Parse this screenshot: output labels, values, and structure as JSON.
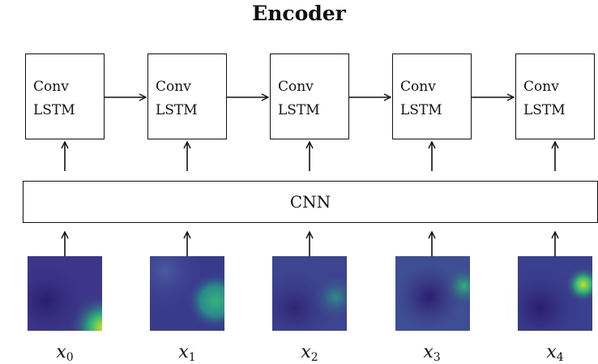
{
  "title": "Encoder",
  "cells": [
    {
      "line1": "Conv",
      "line2": "LSTM"
    },
    {
      "line1": "Conv",
      "line2": "LSTM"
    },
    {
      "line1": "Conv",
      "line2": "LSTM"
    },
    {
      "line1": "Conv",
      "line2": "LSTM"
    },
    {
      "line1": "Conv",
      "line2": "LSTM"
    }
  ],
  "cnn_label": "CNN",
  "inputs": [
    {
      "var": "x",
      "sub": "0"
    },
    {
      "var": "x",
      "sub": "1"
    },
    {
      "var": "x",
      "sub": "2"
    },
    {
      "var": "x",
      "sub": "3"
    },
    {
      "var": "x",
      "sub": "4"
    }
  ],
  "colors": {
    "line": "#111111",
    "tile_base": "#3b3689",
    "tile_dark": "#2b1c6e",
    "tile_green": "#2fb67a",
    "tile_yellow": "#c9e020"
  }
}
